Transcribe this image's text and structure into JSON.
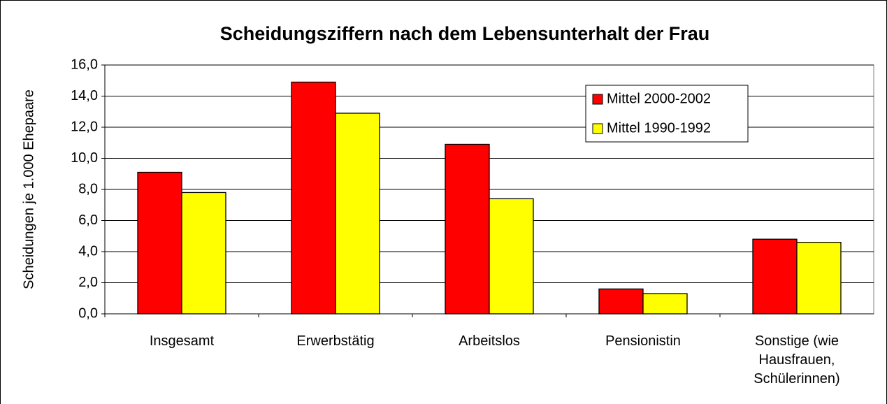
{
  "chart_data": {
    "type": "bar",
    "title": "Scheidungsziffern nach dem Lebensunterhalt der Frau",
    "y_label": "Scheidungen je 1.000 Ehepaare",
    "categories": [
      "Insgesamt",
      "Erwerbstätig",
      "Arbeitslos",
      "Pensionistin",
      "Sonstige (wie Hausfrauen, Schülerinnen)"
    ],
    "series": [
      {
        "name": "Mittel 2000-2002",
        "color": "#ff0000",
        "values": [
          9.1,
          14.9,
          10.9,
          1.6,
          4.8
        ]
      },
      {
        "name": "Mittel 1990-1992",
        "color": "#ffff00",
        "values": [
          7.8,
          12.9,
          7.4,
          1.3,
          4.6
        ]
      }
    ],
    "ylim": [
      0,
      16
    ],
    "yticks": [
      {
        "value": 0,
        "label": "0,0"
      },
      {
        "value": 2,
        "label": "2,0"
      },
      {
        "value": 4,
        "label": "4,0"
      },
      {
        "value": 6,
        "label": "6,0"
      },
      {
        "value": 8,
        "label": "8,0"
      },
      {
        "value": 10,
        "label": "10,0"
      },
      {
        "value": 12,
        "label": "12,0"
      },
      {
        "value": 14,
        "label": "14,0"
      },
      {
        "value": 16,
        "label": "16,0"
      }
    ],
    "grid": true,
    "legend": "upper right"
  }
}
